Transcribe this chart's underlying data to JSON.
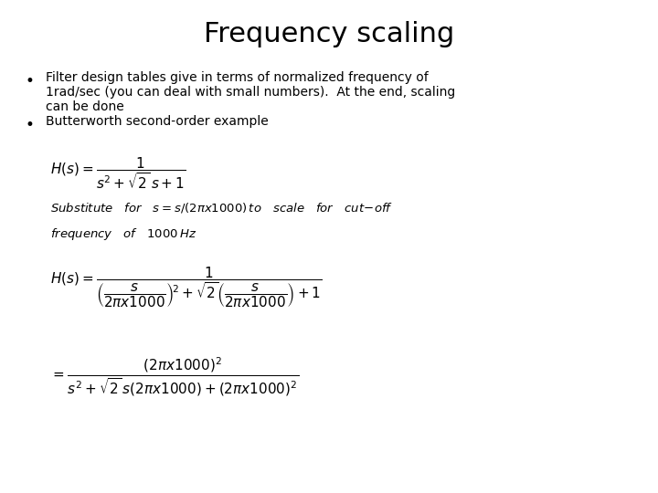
{
  "title": "Frequency scaling",
  "title_fontsize": 22,
  "body_fontsize": 10,
  "eq_fontsize": 11,
  "sub_fontsize": 9.5,
  "background_color": "#ffffff",
  "text_color": "#000000",
  "bullet1_line1": "Filter design tables give in terms of normalized frequency of",
  "bullet1_line2": "1rad/sec (you can deal with small numbers).  At the end, scaling",
  "bullet1_line3": "can be done",
  "bullet2": "Butterworth second-order example"
}
